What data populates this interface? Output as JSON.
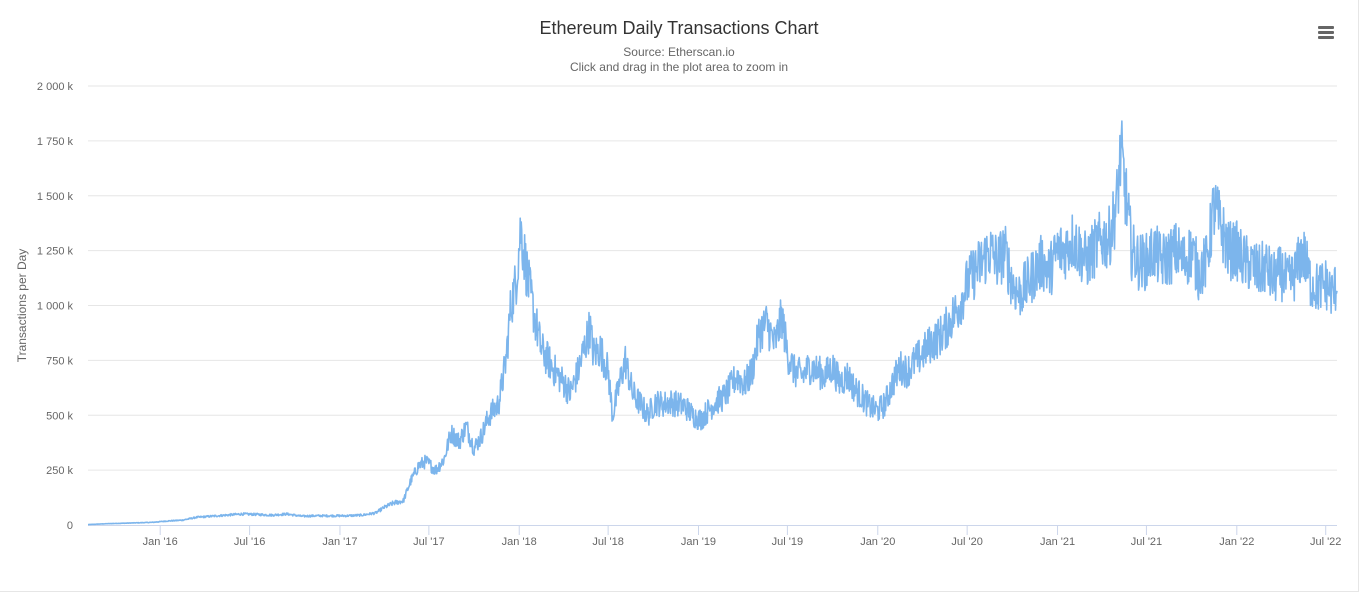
{
  "header": {
    "title": "Ethereum Daily Transactions Chart",
    "subtitle": "Source: Etherscan.io",
    "hint": "Click and drag in the plot area to zoom in",
    "menu_icon": "hamburger-menu-icon"
  },
  "colors": {
    "line": "#7cb5ec",
    "grid": "#e6e6e6",
    "axis_line": "#ccd6eb",
    "text": "#666666",
    "title": "#333333"
  },
  "chart_data": {
    "type": "line",
    "title": "Ethereum Daily Transactions Chart",
    "subtitle": "Source: Etherscan.io",
    "xlabel": "",
    "ylabel": "Transactions per Day",
    "ylim": [
      0,
      2000000
    ],
    "xlim": [
      "2015-08-07",
      "2022-07-24"
    ],
    "grid": true,
    "legend": "none",
    "y_ticks": [
      {
        "value": 0,
        "label": "0"
      },
      {
        "value": 250000,
        "label": "250 k"
      },
      {
        "value": 500000,
        "label": "500 k"
      },
      {
        "value": 750000,
        "label": "750 k"
      },
      {
        "value": 1000000,
        "label": "1 000 k"
      },
      {
        "value": 1250000,
        "label": "1 250 k"
      },
      {
        "value": 1500000,
        "label": "1 500 k"
      },
      {
        "value": 1750000,
        "label": "1 750 k"
      },
      {
        "value": 2000000,
        "label": "2 000 k"
      }
    ],
    "x_ticks": [
      {
        "date": "2016-01-01",
        "label": "Jan '16"
      },
      {
        "date": "2016-07-01",
        "label": "Jul '16"
      },
      {
        "date": "2017-01-01",
        "label": "Jan '17"
      },
      {
        "date": "2017-07-01",
        "label": "Jul '17"
      },
      {
        "date": "2018-01-01",
        "label": "Jan '18"
      },
      {
        "date": "2018-07-01",
        "label": "Jul '18"
      },
      {
        "date": "2019-01-01",
        "label": "Jan '19"
      },
      {
        "date": "2019-07-01",
        "label": "Jul '19"
      },
      {
        "date": "2020-01-01",
        "label": "Jan '20"
      },
      {
        "date": "2020-07-01",
        "label": "Jul '20"
      },
      {
        "date": "2021-01-01",
        "label": "Jan '21"
      },
      {
        "date": "2021-07-01",
        "label": "Jul '21"
      },
      {
        "date": "2022-01-01",
        "label": "Jan '22"
      },
      {
        "date": "2022-07-01",
        "label": "Jul '22"
      }
    ],
    "series": [
      {
        "values": [
          [
            "2015-08-07",
            2000
          ],
          [
            "2015-09-15",
            6000
          ],
          [
            "2015-11-01",
            9000
          ],
          [
            "2015-12-15",
            12000
          ],
          [
            "2016-01-15",
            18000
          ],
          [
            "2016-02-15",
            22000
          ],
          [
            "2016-03-15",
            35000
          ],
          [
            "2016-04-15",
            40000
          ],
          [
            "2016-05-15",
            45000
          ],
          [
            "2016-06-15",
            50000
          ],
          [
            "2016-07-15",
            48000
          ],
          [
            "2016-08-15",
            45000
          ],
          [
            "2016-09-15",
            50000
          ],
          [
            "2016-10-15",
            40000
          ],
          [
            "2016-11-15",
            42000
          ],
          [
            "2016-12-15",
            42000
          ],
          [
            "2017-01-15",
            42000
          ],
          [
            "2017-02-15",
            45000
          ],
          [
            "2017-03-15",
            55000
          ],
          [
            "2017-04-01",
            80000
          ],
          [
            "2017-04-20",
            100000
          ],
          [
            "2017-05-10",
            110000
          ],
          [
            "2017-05-25",
            200000
          ],
          [
            "2017-06-10",
            270000
          ],
          [
            "2017-06-25",
            290000
          ],
          [
            "2017-07-15",
            250000
          ],
          [
            "2017-08-01",
            300000
          ],
          [
            "2017-08-15",
            420000
          ],
          [
            "2017-09-01",
            380000
          ],
          [
            "2017-09-15",
            450000
          ],
          [
            "2017-10-01",
            350000
          ],
          [
            "2017-10-15",
            400000
          ],
          [
            "2017-11-01",
            500000
          ],
          [
            "2017-11-20",
            550000
          ],
          [
            "2017-12-05",
            750000
          ],
          [
            "2017-12-15",
            1000000
          ],
          [
            "2017-12-25",
            1100000
          ],
          [
            "2018-01-04",
            1350000
          ],
          [
            "2018-01-10",
            1250000
          ],
          [
            "2018-01-20",
            1100000
          ],
          [
            "2018-02-01",
            950000
          ],
          [
            "2018-02-15",
            800000
          ],
          [
            "2018-03-01",
            750000
          ],
          [
            "2018-03-15",
            700000
          ],
          [
            "2018-04-01",
            650000
          ],
          [
            "2018-04-15",
            600000
          ],
          [
            "2018-05-01",
            700000
          ],
          [
            "2018-05-15",
            820000
          ],
          [
            "2018-05-25",
            900000
          ],
          [
            "2018-06-01",
            780000
          ],
          [
            "2018-06-15",
            800000
          ],
          [
            "2018-07-01",
            700000
          ],
          [
            "2018-07-10",
            500000
          ],
          [
            "2018-07-25",
            650000
          ],
          [
            "2018-08-05",
            750000
          ],
          [
            "2018-08-20",
            600000
          ],
          [
            "2018-09-05",
            550000
          ],
          [
            "2018-09-20",
            500000
          ],
          [
            "2018-10-05",
            560000
          ],
          [
            "2018-10-20",
            550000
          ],
          [
            "2018-11-05",
            560000
          ],
          [
            "2018-11-20",
            550000
          ],
          [
            "2018-12-05",
            540000
          ],
          [
            "2018-12-20",
            500000
          ],
          [
            "2019-01-05",
            480000
          ],
          [
            "2019-01-20",
            520000
          ],
          [
            "2019-02-05",
            560000
          ],
          [
            "2019-02-20",
            580000
          ],
          [
            "2019-03-05",
            620000
          ],
          [
            "2019-03-20",
            680000
          ],
          [
            "2019-04-05",
            640000
          ],
          [
            "2019-04-20",
            700000
          ],
          [
            "2019-05-05",
            880000
          ],
          [
            "2019-05-20",
            920000
          ],
          [
            "2019-06-05",
            820000
          ],
          [
            "2019-06-20",
            950000
          ],
          [
            "2019-07-01",
            780000
          ],
          [
            "2019-07-15",
            700000
          ],
          [
            "2019-08-01",
            680000
          ],
          [
            "2019-08-15",
            720000
          ],
          [
            "2019-09-01",
            700000
          ],
          [
            "2019-09-15",
            680000
          ],
          [
            "2019-10-01",
            720000
          ],
          [
            "2019-10-15",
            650000
          ],
          [
            "2019-11-01",
            680000
          ],
          [
            "2019-11-15",
            620000
          ],
          [
            "2019-12-01",
            580000
          ],
          [
            "2019-12-15",
            540000
          ],
          [
            "2020-01-01",
            520000
          ],
          [
            "2020-01-15",
            550000
          ],
          [
            "2020-02-01",
            650000
          ],
          [
            "2020-02-15",
            720000
          ],
          [
            "2020-03-01",
            700000
          ],
          [
            "2020-03-15",
            740000
          ],
          [
            "2020-04-01",
            780000
          ],
          [
            "2020-04-15",
            820000
          ],
          [
            "2020-05-01",
            850000
          ],
          [
            "2020-05-15",
            880000
          ],
          [
            "2020-06-01",
            950000
          ],
          [
            "2020-06-15",
            1000000
          ],
          [
            "2020-07-01",
            1100000
          ],
          [
            "2020-07-15",
            1150000
          ],
          [
            "2020-08-01",
            1200000
          ],
          [
            "2020-08-15",
            1250000
          ],
          [
            "2020-09-01",
            1200000
          ],
          [
            "2020-09-15",
            1250000
          ],
          [
            "2020-10-01",
            1100000
          ],
          [
            "2020-10-15",
            1050000
          ],
          [
            "2020-11-01",
            1100000
          ],
          [
            "2020-11-15",
            1150000
          ],
          [
            "2020-12-01",
            1200000
          ],
          [
            "2020-12-15",
            1150000
          ],
          [
            "2021-01-01",
            1250000
          ],
          [
            "2021-01-15",
            1250000
          ],
          [
            "2021-02-01",
            1300000
          ],
          [
            "2021-02-15",
            1250000
          ],
          [
            "2021-03-01",
            1200000
          ],
          [
            "2021-03-15",
            1250000
          ],
          [
            "2021-04-01",
            1300000
          ],
          [
            "2021-04-15",
            1300000
          ],
          [
            "2021-05-01",
            1450000
          ],
          [
            "2021-05-10",
            1700000
          ],
          [
            "2021-05-20",
            1500000
          ],
          [
            "2021-06-01",
            1250000
          ],
          [
            "2021-06-15",
            1200000
          ],
          [
            "2021-07-01",
            1200000
          ],
          [
            "2021-07-15",
            1250000
          ],
          [
            "2021-08-01",
            1200000
          ],
          [
            "2021-08-15",
            1220000
          ],
          [
            "2021-09-01",
            1250000
          ],
          [
            "2021-09-15",
            1200000
          ],
          [
            "2021-10-01",
            1250000
          ],
          [
            "2021-10-15",
            1150000
          ],
          [
            "2021-11-01",
            1200000
          ],
          [
            "2021-11-15",
            1450000
          ],
          [
            "2021-12-01",
            1350000
          ],
          [
            "2021-12-15",
            1250000
          ],
          [
            "2022-01-01",
            1250000
          ],
          [
            "2022-01-15",
            1200000
          ],
          [
            "2022-02-01",
            1180000
          ],
          [
            "2022-02-15",
            1150000
          ],
          [
            "2022-03-01",
            1180000
          ],
          [
            "2022-03-15",
            1120000
          ],
          [
            "2022-04-01",
            1150000
          ],
          [
            "2022-04-15",
            1100000
          ],
          [
            "2022-05-01",
            1150000
          ],
          [
            "2022-05-15",
            1250000
          ],
          [
            "2022-06-01",
            1100000
          ],
          [
            "2022-06-15",
            1080000
          ],
          [
            "2022-07-01",
            1100000
          ],
          [
            "2022-07-15",
            1050000
          ],
          [
            "2022-07-24",
            1100000
          ]
        ]
      }
    ]
  }
}
